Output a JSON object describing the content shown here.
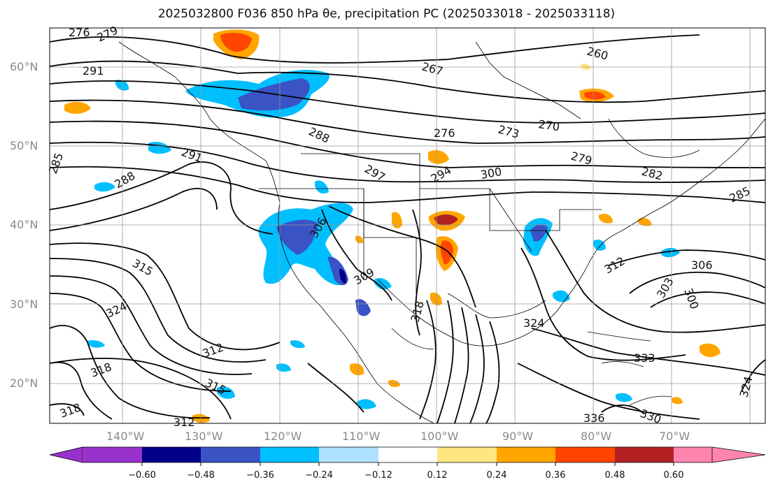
{
  "title": "2025032800 F036 850 hPa θe, precipitation PC (2025033018 - 2025033118)",
  "lat_labels": [
    "60°N",
    "50°N",
    "40°N",
    "30°N",
    "20°N"
  ],
  "lon_labels": [
    "140°W",
    "130°W",
    "120°W",
    "110°W",
    "100°W",
    "90°W",
    "80°W",
    "70°W"
  ],
  "colorbar": {
    "colors": [
      "#9932cc",
      "#00008b",
      "#3a53c5",
      "#00bfff",
      "#aee0ff",
      "#ffffff",
      "#ffe680",
      "#ffa500",
      "#ff4500",
      "#b22222",
      "#ff85b0"
    ],
    "tick_labels": [
      "−0.60",
      "−0.48",
      "−0.36",
      "−0.24",
      "−0.12",
      "0.12",
      "0.24",
      "0.36",
      "0.48",
      "0.60"
    ]
  },
  "contour_labels": [
    "276",
    "279",
    "291",
    "267",
    "260",
    "270",
    "273",
    "276",
    "279",
    "288",
    "291",
    "285",
    "288",
    "297",
    "294",
    "300",
    "282",
    "285",
    "306",
    "309",
    "312",
    "306",
    "303",
    "300",
    "315",
    "324",
    "318",
    "312",
    "318",
    "315",
    "312",
    "318",
    "324",
    "333",
    "336",
    "330",
    "324"
  ]
}
